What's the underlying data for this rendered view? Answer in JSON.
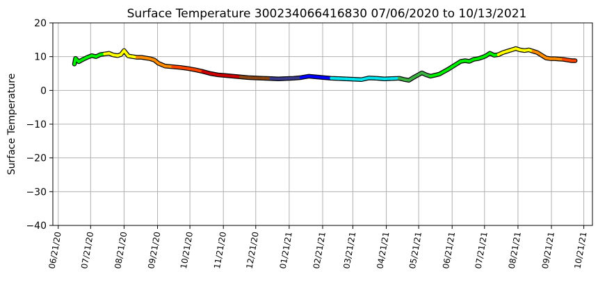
{
  "chart_data": {
    "type": "line",
    "title": "Surface Temperature 300234066416830  07/06/2020 to 10/13/2021",
    "xlabel": "",
    "ylabel": "Surface Temperature",
    "ylim": [
      -40,
      20
    ],
    "yticks": [
      -40,
      -30,
      -20,
      -10,
      0,
      10,
      20
    ],
    "xlim": [
      "2020-06-16",
      "2021-10-29"
    ],
    "xticks": [
      {
        "date": "2020-06-21",
        "label": "06/21/20"
      },
      {
        "date": "2020-07-21",
        "label": "07/21/20"
      },
      {
        "date": "2020-08-21",
        "label": "08/21/20"
      },
      {
        "date": "2020-09-21",
        "label": "09/21/20"
      },
      {
        "date": "2020-10-21",
        "label": "10/21/20"
      },
      {
        "date": "2020-11-21",
        "label": "11/21/20"
      },
      {
        "date": "2020-12-21",
        "label": "12/21/20"
      },
      {
        "date": "2021-01-21",
        "label": "01/21/21"
      },
      {
        "date": "2021-02-21",
        "label": "02/21/21"
      },
      {
        "date": "2021-03-21",
        "label": "03/21/21"
      },
      {
        "date": "2021-04-21",
        "label": "04/21/21"
      },
      {
        "date": "2021-05-21",
        "label": "05/21/21"
      },
      {
        "date": "2021-06-21",
        "label": "06/21/21"
      },
      {
        "date": "2021-07-21",
        "label": "07/21/21"
      },
      {
        "date": "2021-08-21",
        "label": "08/21/21"
      },
      {
        "date": "2021-09-21",
        "label": "09/21/21"
      },
      {
        "date": "2021-10-21",
        "label": "10/21/21"
      }
    ],
    "grid": true,
    "color_by": "month",
    "month_colors": {
      "01": "#3a3a8c",
      "02": "#0000ff",
      "03": "#00e5ee",
      "04": "#00e5ee",
      "05": "#3cb043",
      "06": "#00ee00",
      "07": "#00ee00",
      "08": "#ffff00",
      "09": "#ff8c00",
      "10": "#ff4500",
      "11": "#cc0000",
      "12": "#8b4513"
    },
    "series": [
      {
        "x": [
          "2020-07-06",
          "2020-07-07",
          "2020-07-10",
          "2020-07-14",
          "2020-07-18",
          "2020-07-22",
          "2020-07-26",
          "2020-07-30",
          "2020-08-03",
          "2020-08-07",
          "2020-08-11",
          "2020-08-15",
          "2020-08-18",
          "2020-08-21",
          "2020-08-25",
          "2020-08-29",
          "2020-09-02",
          "2020-09-06",
          "2020-09-10",
          "2020-09-14",
          "2020-09-18",
          "2020-09-22",
          "2020-09-28",
          "2020-10-05",
          "2020-10-12",
          "2020-10-19",
          "2020-10-26",
          "2020-11-02",
          "2020-11-09",
          "2020-11-16",
          "2020-11-23",
          "2020-11-30",
          "2020-12-07",
          "2020-12-14",
          "2020-12-21",
          "2020-12-28",
          "2021-01-04",
          "2021-01-11",
          "2021-01-18",
          "2021-01-25",
          "2021-02-01",
          "2021-02-08",
          "2021-02-15",
          "2021-02-22",
          "2021-03-01",
          "2021-03-08",
          "2021-03-15",
          "2021-03-22",
          "2021-03-29",
          "2021-04-05",
          "2021-04-12",
          "2021-04-19",
          "2021-04-26",
          "2021-05-03",
          "2021-05-08",
          "2021-05-12",
          "2021-05-16",
          "2021-05-20",
          "2021-05-24",
          "2021-05-28",
          "2021-06-01",
          "2021-06-05",
          "2021-06-09",
          "2021-06-13",
          "2021-06-17",
          "2021-06-21",
          "2021-06-25",
          "2021-06-29",
          "2021-07-03",
          "2021-07-07",
          "2021-07-11",
          "2021-07-15",
          "2021-07-19",
          "2021-07-22",
          "2021-07-26",
          "2021-07-30",
          "2021-08-03",
          "2021-08-07",
          "2021-08-11",
          "2021-08-15",
          "2021-08-19",
          "2021-08-23",
          "2021-08-27",
          "2021-08-31",
          "2021-09-04",
          "2021-09-08",
          "2021-09-12",
          "2021-09-16",
          "2021-09-20",
          "2021-09-24",
          "2021-09-28",
          "2021-10-02",
          "2021-10-06",
          "2021-10-10",
          "2021-10-13"
        ],
        "values": [
          7.8,
          9.5,
          8.5,
          9.2,
          9.8,
          10.3,
          10.0,
          10.6,
          10.8,
          11.0,
          10.5,
          10.3,
          10.6,
          11.8,
          10.2,
          10.0,
          9.8,
          9.8,
          9.6,
          9.4,
          9.0,
          8.0,
          7.2,
          7.0,
          6.8,
          6.5,
          6.1,
          5.6,
          5.0,
          4.6,
          4.4,
          4.2,
          4.0,
          3.8,
          3.7,
          3.6,
          3.5,
          3.4,
          3.5,
          3.6,
          3.8,
          4.2,
          4.0,
          3.8,
          3.6,
          3.5,
          3.4,
          3.3,
          3.2,
          3.7,
          3.6,
          3.4,
          3.5,
          3.6,
          3.2,
          3.0,
          3.8,
          4.5,
          5.2,
          4.6,
          4.2,
          4.5,
          4.8,
          5.5,
          6.2,
          7.0,
          7.8,
          8.6,
          8.8,
          8.6,
          9.2,
          9.4,
          9.8,
          10.2,
          11.0,
          10.4,
          10.6,
          11.2,
          11.6,
          12.0,
          12.4,
          12.0,
          11.8,
          12.0,
          11.6,
          11.2,
          10.4,
          9.6,
          9.4,
          9.4,
          9.3,
          9.2,
          9.0,
          8.8,
          8.8
        ]
      }
    ]
  }
}
